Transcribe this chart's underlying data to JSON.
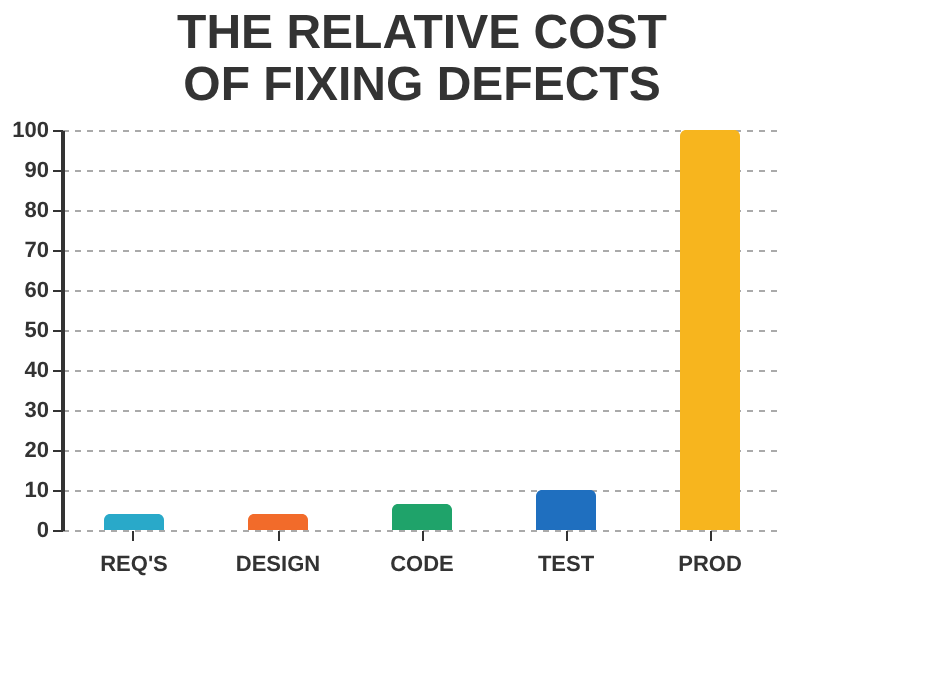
{
  "chart_data": {
    "type": "bar",
    "title": [
      "THE RELATIVE COST",
      "OF FIXING DEFECTS"
    ],
    "categories": [
      "REQ'S",
      "DESIGN",
      "CODE",
      "TEST",
      "PROD"
    ],
    "values": [
      4,
      4,
      6.5,
      10,
      100
    ],
    "colors": [
      "#29a9c9",
      "#f26b2a",
      "#1fa36a",
      "#1f6fbf",
      "#f7b51e"
    ],
    "ylim": [
      0,
      100
    ],
    "yticks": [
      0,
      10,
      20,
      30,
      40,
      50,
      60,
      70,
      80,
      90,
      100
    ],
    "grid": "y"
  }
}
